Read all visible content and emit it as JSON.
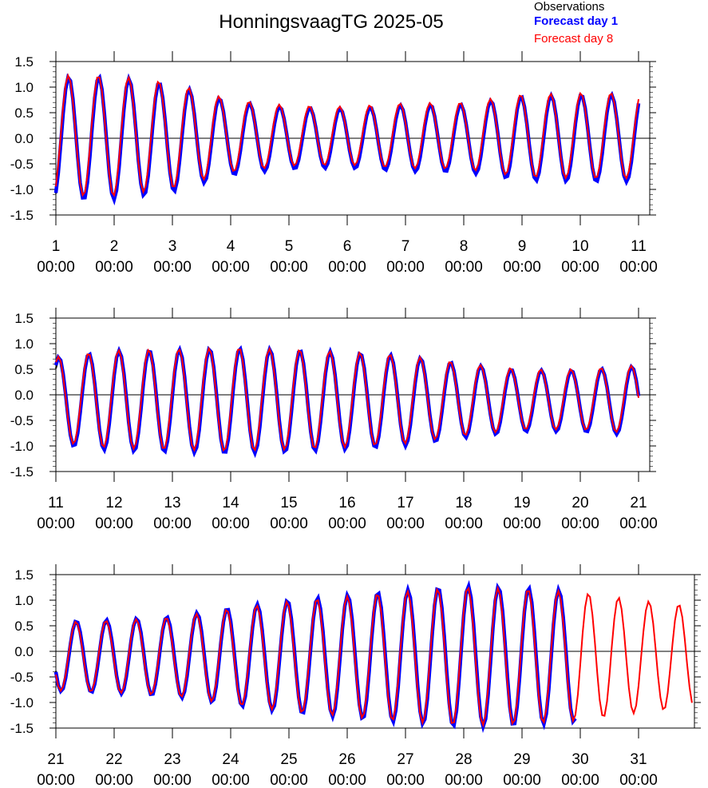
{
  "title": "HonningsvaagTG 2025-05",
  "legend": {
    "observations": "Observations",
    "forecast_day_1": "Forecast day 1",
    "forecast_day_8": "Forecast day 8"
  },
  "colors": {
    "observations": "#000000",
    "forecast_day_1": "#0000ff",
    "forecast_day_8": "#ff0000"
  },
  "chart_data": [
    {
      "type": "line",
      "panel": "1-11 May",
      "x_range_days": [
        1,
        11
      ],
      "ylim": [
        -1.5,
        1.5
      ],
      "y_ticks": [
        "1.5",
        "1.0",
        "0.5",
        "0.0",
        "-0.5",
        "-1.0",
        "-1.5"
      ],
      "x_ticks": [
        {
          "day": 1,
          "label": "1",
          "time": "00:00"
        },
        {
          "day": 2,
          "label": "2",
          "time": "00:00"
        },
        {
          "day": 3,
          "label": "3",
          "time": "00:00"
        },
        {
          "day": 4,
          "label": "4",
          "time": "00:00"
        },
        {
          "day": 5,
          "label": "5",
          "time": "00:00"
        },
        {
          "day": 6,
          "label": "6",
          "time": "00:00"
        },
        {
          "day": 7,
          "label": "7",
          "time": "00:00"
        },
        {
          "day": 8,
          "label": "8",
          "time": "00:00"
        },
        {
          "day": 9,
          "label": "9",
          "time": "00:00"
        },
        {
          "day": 10,
          "label": "10",
          "time": "00:00"
        },
        {
          "day": 11,
          "label": "11",
          "time": "00:00"
        }
      ],
      "amplitude_envelope": [
        {
          "day": 1.0,
          "amp": 1.2
        },
        {
          "day": 2.0,
          "amp": 1.2
        },
        {
          "day": 3.0,
          "amp": 1.05
        },
        {
          "day": 4.0,
          "amp": 0.72
        },
        {
          "day": 5.0,
          "amp": 0.6
        },
        {
          "day": 6.0,
          "amp": 0.58
        },
        {
          "day": 7.0,
          "amp": 0.65
        },
        {
          "day": 8.0,
          "amp": 0.66
        },
        {
          "day": 9.0,
          "amp": 0.82
        },
        {
          "day": 10.0,
          "amp": 0.85
        },
        {
          "day": 11.0,
          "amp": 0.85
        }
      ],
      "mean_level": 0.0,
      "phase_first_high_day": 1.22,
      "data_end_day": 11.0,
      "observations_end_day": 1.4,
      "forecast8_bias": 0.05
    },
    {
      "type": "line",
      "panel": "11-21 May",
      "x_range_days": [
        11,
        21
      ],
      "ylim": [
        -1.5,
        1.5
      ],
      "y_ticks": [
        "1.5",
        "1.0",
        "0.5",
        "0.0",
        "-0.5",
        "-1.0",
        "-1.5"
      ],
      "x_ticks": [
        {
          "day": 11,
          "label": "11",
          "time": "00:00"
        },
        {
          "day": 12,
          "label": "12",
          "time": "00:00"
        },
        {
          "day": 13,
          "label": "13",
          "time": "00:00"
        },
        {
          "day": 14,
          "label": "14",
          "time": "00:00"
        },
        {
          "day": 15,
          "label": "15",
          "time": "00:00"
        },
        {
          "day": 16,
          "label": "16",
          "time": "00:00"
        },
        {
          "day": 17,
          "label": "17",
          "time": "00:00"
        },
        {
          "day": 18,
          "label": "18",
          "time": "00:00"
        },
        {
          "day": 19,
          "label": "19",
          "time": "00:00"
        },
        {
          "day": 20,
          "label": "20",
          "time": "00:00"
        },
        {
          "day": 21,
          "label": "21",
          "time": "00:00"
        }
      ],
      "amplitude_envelope": [
        {
          "day": 11.0,
          "amp": 0.85
        },
        {
          "day": 12.0,
          "amp": 0.98
        },
        {
          "day": 13.0,
          "amp": 1.0
        },
        {
          "day": 14.0,
          "amp": 1.03
        },
        {
          "day": 15.0,
          "amp": 1.0
        },
        {
          "day": 16.0,
          "amp": 0.95
        },
        {
          "day": 17.0,
          "amp": 0.88
        },
        {
          "day": 18.0,
          "amp": 0.72
        },
        {
          "day": 19.0,
          "amp": 0.6
        },
        {
          "day": 20.0,
          "amp": 0.6
        },
        {
          "day": 21.0,
          "amp": 0.68
        }
      ],
      "mean_level": -0.12,
      "phase_first_high_day": 11.05,
      "data_end_day": 21.0,
      "observations_end_day": 11.2,
      "forecast8_bias": 0.03
    },
    {
      "type": "line",
      "panel": "21-31 May",
      "x_range_days": [
        21,
        32
      ],
      "ylim": [
        -1.5,
        1.5
      ],
      "y_ticks": [
        "1.5",
        "1.0",
        "0.5",
        "0.0",
        "-0.5",
        "-1.0",
        "-1.5"
      ],
      "x_ticks": [
        {
          "day": 21,
          "label": "21",
          "time": "00:00"
        },
        {
          "day": 22,
          "label": "22",
          "time": "00:00"
        },
        {
          "day": 23,
          "label": "23",
          "time": "00:00"
        },
        {
          "day": 24,
          "label": "24",
          "time": "00:00"
        },
        {
          "day": 25,
          "label": "25",
          "time": "00:00"
        },
        {
          "day": 26,
          "label": "26",
          "time": "00:00"
        },
        {
          "day": 27,
          "label": "27",
          "time": "00:00"
        },
        {
          "day": 28,
          "label": "28",
          "time": "00:00"
        },
        {
          "day": 29,
          "label": "29",
          "time": "00:00"
        },
        {
          "day": 30,
          "label": "30",
          "time": "00:00"
        },
        {
          "day": 31,
          "label": "31",
          "time": "00:00"
        }
      ],
      "amplitude_envelope": [
        {
          "day": 21.0,
          "amp": 0.68
        },
        {
          "day": 22.0,
          "amp": 0.72
        },
        {
          "day": 23.0,
          "amp": 0.78
        },
        {
          "day": 24.0,
          "amp": 0.95
        },
        {
          "day": 25.0,
          "amp": 1.1
        },
        {
          "day": 26.0,
          "amp": 1.2
        },
        {
          "day": 27.0,
          "amp": 1.3
        },
        {
          "day": 28.0,
          "amp": 1.38
        },
        {
          "day": 29.0,
          "amp": 1.35
        },
        {
          "day": 30.0,
          "amp": 1.28
        },
        {
          "day": 31.0,
          "amp": 1.12
        },
        {
          "day": 32.0,
          "amp": 1.0
        }
      ],
      "mean_level": -0.1,
      "phase_first_high_day": 21.35,
      "data_end_day": 31.95,
      "forecast1_end_day": 29.95,
      "observations_end_day": 29.9,
      "forecast8_bias": 0.0
    }
  ]
}
